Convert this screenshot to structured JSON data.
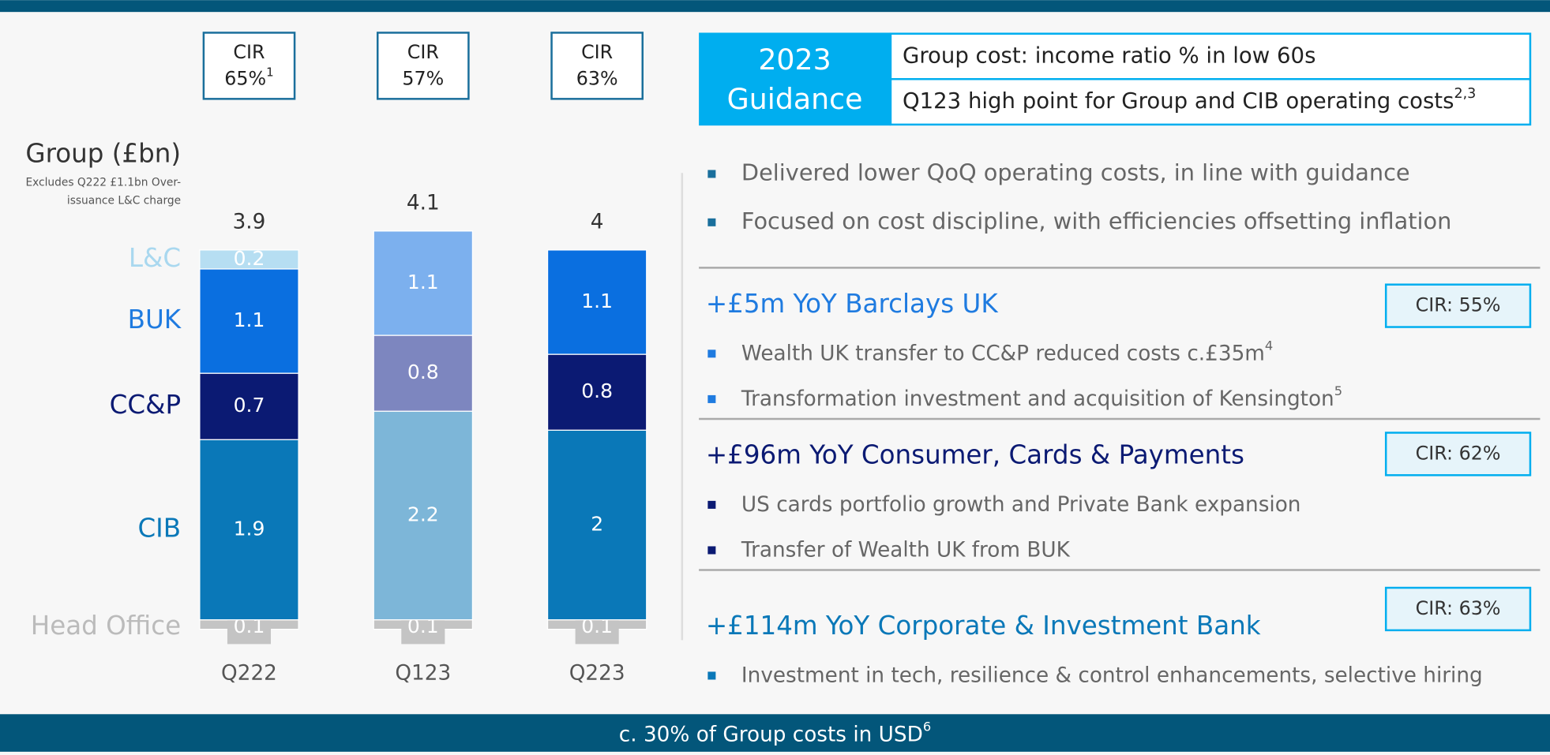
{
  "chart_data": {
    "type": "stacked-bar",
    "title": "Group (£bn)",
    "note": [
      "Excludes Q222 £1.1bn Over-",
      "issuance L&C charge"
    ],
    "categories": [
      "Q222",
      "Q123",
      "Q223"
    ],
    "totals": [
      3.9,
      4.1,
      4.0
    ],
    "cir": [
      {
        "label": "CIR",
        "value": "65%",
        "sup": "1"
      },
      {
        "label": "CIR",
        "value": "57%"
      },
      {
        "label": "CIR",
        "value": "63%"
      }
    ],
    "series": [
      {
        "name": "Head Office",
        "color": "#bbbbbb",
        "colors": [
          "#c4c4c4",
          "#c4c4c4",
          "#c4c4c4"
        ],
        "values": [
          0.1,
          0.1,
          0.1
        ]
      },
      {
        "name": "CIB",
        "color": "#0a78b8",
        "colors": [
          "#0a78b8",
          "#7db6d8",
          "#0a78b8"
        ],
        "values": [
          1.9,
          2.2,
          2.0
        ]
      },
      {
        "name": "CC&P",
        "color": "#0b1a73",
        "colors": [
          "#0b1a73",
          "#7d86bf",
          "#0b1a73"
        ],
        "values": [
          0.7,
          0.8,
          0.8
        ]
      },
      {
        "name": "BUK",
        "color": "#1f7be0",
        "colors": [
          "#0a6fe0",
          "#7cb0ee",
          "#0a6fe0"
        ],
        "values": [
          1.1,
          1.1,
          1.1
        ]
      },
      {
        "name": "L&C",
        "color": "#a9d8ef",
        "colors": [
          "#b6def2",
          "#b6def2",
          "#b6def2"
        ],
        "values": [
          0.2,
          null,
          null
        ]
      }
    ]
  },
  "guidance": {
    "year": "2023",
    "label": "Guidance",
    "rows": [
      {
        "text": "Group cost: income ratio % in low 60s"
      },
      {
        "text": "Q123 high point for Group and CIB operating costs",
        "sup": "2,3"
      }
    ]
  },
  "bullets": [
    "Delivered lower QoQ operating costs, in line with guidance",
    "Focused on cost discipline, with efficiencies offsetting inflation"
  ],
  "sections": [
    {
      "heading": "+£5m YoY  Barclays UK",
      "color": "#1f7be0",
      "cir": "CIR: 55%",
      "bullets": [
        {
          "text": "Wealth UK transfer to CC&P reduced costs c.£35m",
          "sup": "4"
        },
        {
          "text": "Transformation investment and acquisition of Kensington",
          "sup": "5"
        }
      ]
    },
    {
      "heading": "+£96m YoY  Consumer, Cards & Payments",
      "color": "#0b1a73",
      "cir": "CIR: 62%",
      "bullets": [
        {
          "text": "US cards portfolio growth and Private Bank expansion"
        },
        {
          "text": "Transfer of Wealth UK from BUK"
        }
      ]
    },
    {
      "heading": "+£114m YoY  Corporate & Investment Bank",
      "color": "#0a78b8",
      "cir": "CIR: 63%",
      "bullets": [
        {
          "text": "Investment in tech, resilience & control enhancements, selective hiring"
        }
      ]
    }
  ],
  "footer": {
    "text": "c. 30% of Group costs in USD",
    "sup": "6"
  }
}
